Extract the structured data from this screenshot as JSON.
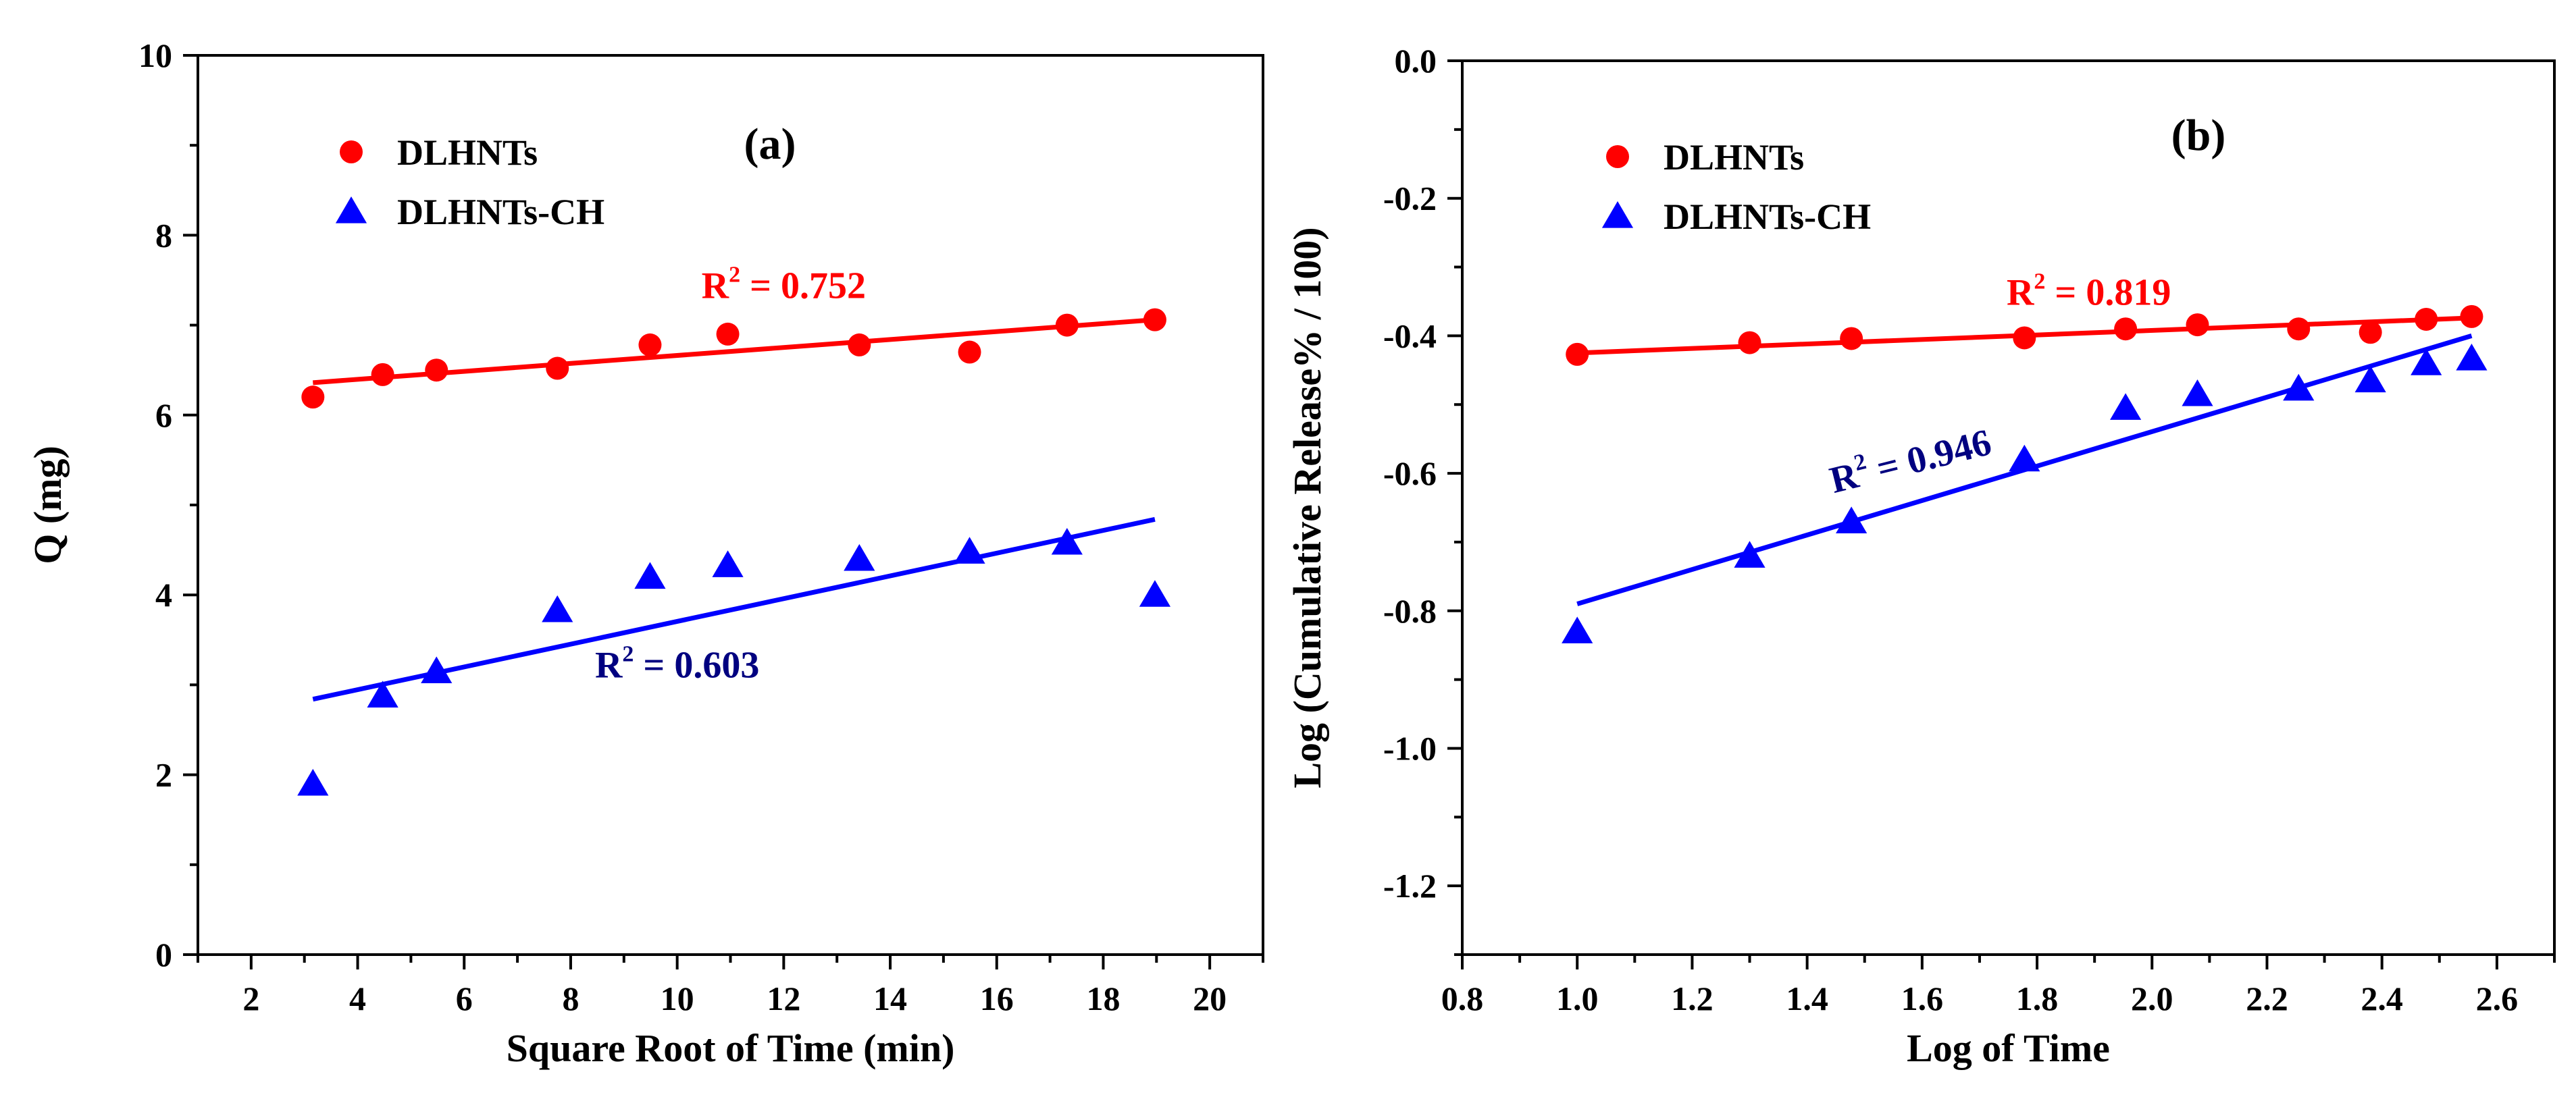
{
  "chart_data": [
    {
      "type": "scatter",
      "panel_label": "(a)",
      "xlabel": "Square Root of Time (min)",
      "ylabel": "Q (mg)",
      "xlim": [
        1,
        21
      ],
      "ylim": [
        0,
        10
      ],
      "xticks": [
        2,
        4,
        6,
        8,
        10,
        12,
        14,
        16,
        18,
        20
      ],
      "xtick_labels": [
        "2",
        "4",
        "6",
        "8",
        "10",
        "12",
        "14",
        "16",
        "18",
        "20"
      ],
      "yticks": [
        0,
        2,
        4,
        6,
        8,
        10
      ],
      "ytick_labels": [
        "0",
        "2",
        "4",
        "6",
        "8",
        "10"
      ],
      "legend_position": "top-left",
      "series": [
        {
          "name": "DLHNTs",
          "marker": "circle",
          "color": "#ff0000",
          "x": [
            3.16,
            4.47,
            5.48,
            7.75,
            9.49,
            10.95,
            13.42,
            15.49,
            17.32,
            18.97
          ],
          "y": [
            6.2,
            6.45,
            6.5,
            6.52,
            6.78,
            6.9,
            6.78,
            6.7,
            7.0,
            7.06
          ],
          "fit": {
            "x": [
              3.16,
              18.97
            ],
            "y": [
              6.36,
              7.06
            ]
          },
          "r2_prefix": "R",
          "r2_sup": "2",
          "r2_text": " = 0.752",
          "r2_color": "#ff0000",
          "r2_pos": {
            "x": 12.0,
            "y": 7.3
          },
          "r2_rotate": 0
        },
        {
          "name": "DLHNTs-CH",
          "marker": "triangle",
          "color": "#0000ff",
          "x": [
            3.16,
            4.47,
            5.48,
            7.75,
            9.49,
            10.95,
            13.42,
            15.49,
            17.32,
            18.97
          ],
          "y": [
            1.9,
            2.88,
            3.15,
            3.83,
            4.2,
            4.33,
            4.4,
            4.48,
            4.58,
            4.0
          ],
          "fit": {
            "x": [
              3.16,
              18.97
            ],
            "y": [
              2.84,
              4.84
            ]
          },
          "r2_prefix": "R",
          "r2_sup": "2",
          "r2_text": " = 0.603",
          "r2_color": "#000080",
          "r2_pos": {
            "x": 10.0,
            "y": 3.08
          },
          "r2_rotate": 0
        }
      ]
    },
    {
      "type": "scatter",
      "panel_label": "(b)",
      "xlabel": "Log of Time",
      "ylabel": "Log (Cumulative Release% / 100)",
      "xlim": [
        0.8,
        2.7
      ],
      "ylim": [
        -1.3,
        0.0
      ],
      "xticks": [
        0.8,
        1.0,
        1.2,
        1.4,
        1.6,
        1.8,
        2.0,
        2.2,
        2.4,
        2.6
      ],
      "xtick_labels": [
        "0.8",
        "1.0",
        "1.2",
        "1.4",
        "1.6",
        "1.8",
        "2.0",
        "2.2",
        "2.4",
        "2.6"
      ],
      "yticks": [
        0.0,
        -0.2,
        -0.4,
        -0.6,
        -0.8,
        -1.0,
        -1.2
      ],
      "ytick_labels": [
        "0.0",
        "-0.2",
        "-0.4",
        "-0.6",
        "-0.8",
        "-1.0",
        "-1.2"
      ],
      "legend_position": "top-left",
      "series": [
        {
          "name": "DLHNTs",
          "marker": "circle",
          "color": "#ff0000",
          "x": [
            1.0,
            1.3,
            1.477,
            1.778,
            1.954,
            2.079,
            2.255,
            2.38,
            2.477,
            2.556
          ],
          "y": [
            -0.427,
            -0.41,
            -0.404,
            -0.403,
            -0.39,
            -0.384,
            -0.39,
            -0.395,
            -0.376,
            -0.372
          ],
          "fit": {
            "x": [
              1.0,
              2.556
            ],
            "y": [
              -0.425,
              -0.374
            ]
          },
          "r2_prefix": "R",
          "r2_sup": "2",
          "r2_text": " = 0.819",
          "r2_color": "#ff0000",
          "r2_pos": {
            "x": 1.89,
            "y": -0.355
          },
          "r2_rotate": 0
        },
        {
          "name": "DLHNTs-CH",
          "marker": "triangle",
          "color": "#0000ff",
          "x": [
            1.0,
            1.3,
            1.477,
            1.778,
            1.954,
            2.079,
            2.255,
            2.38,
            2.477,
            2.556
          ],
          "y": [
            -0.83,
            -0.72,
            -0.67,
            -0.58,
            -0.505,
            -0.485,
            -0.477,
            -0.465,
            -0.44,
            -0.433
          ],
          "fit": {
            "x": [
              1.0,
              2.556
            ],
            "y": [
              -0.79,
              -0.4
            ]
          },
          "r2_prefix": "R",
          "r2_sup": "2",
          "r2_text": " = 0.946",
          "r2_color": "#000080",
          "r2_pos": {
            "x": 1.585,
            "y": -0.6
          },
          "r2_rotate": -14
        }
      ]
    }
  ]
}
